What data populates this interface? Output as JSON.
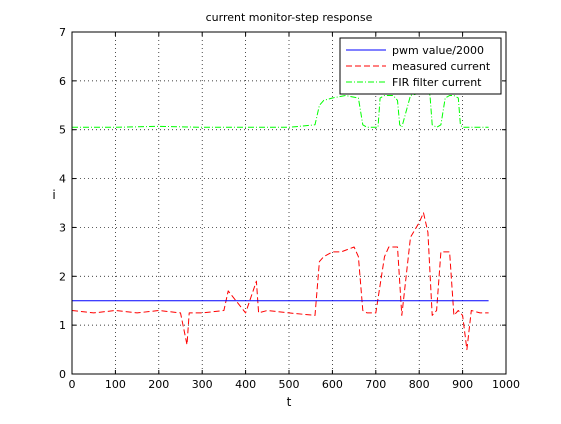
{
  "chart_data": {
    "type": "line",
    "title": "current monitor-step response",
    "xlabel": "t",
    "ylabel": "i",
    "xlim": [
      0,
      1000
    ],
    "ylim": [
      0,
      7
    ],
    "xticks": [
      0,
      100,
      200,
      300,
      400,
      500,
      600,
      700,
      800,
      900,
      1000
    ],
    "yticks": [
      0,
      1,
      2,
      3,
      4,
      5,
      6,
      7
    ],
    "grid": true,
    "legend_position": "top-right",
    "series": [
      {
        "name": "pwm value/2000",
        "color": "#0000ff",
        "style": "solid",
        "x": [
          0,
          960
        ],
        "y": [
          1.5,
          1.5
        ]
      },
      {
        "name": "measured current",
        "color": "#ff0000",
        "style": "dashed",
        "x": [
          0,
          50,
          100,
          150,
          200,
          250,
          265,
          270,
          300,
          350,
          360,
          400,
          425,
          430,
          450,
          500,
          560,
          570,
          580,
          600,
          620,
          650,
          660,
          670,
          680,
          700,
          720,
          730,
          740,
          750,
          760,
          780,
          800,
          810,
          820,
          830,
          840,
          850,
          870,
          880,
          890,
          900,
          910,
          920,
          940,
          960
        ],
        "y": [
          1.3,
          1.25,
          1.3,
          1.25,
          1.3,
          1.25,
          0.6,
          1.25,
          1.25,
          1.3,
          1.7,
          1.25,
          1.9,
          1.25,
          1.3,
          1.25,
          1.2,
          2.3,
          2.4,
          2.5,
          2.5,
          2.6,
          2.4,
          1.3,
          1.25,
          1.25,
          2.4,
          2.6,
          2.6,
          2.6,
          1.2,
          2.8,
          3.1,
          3.3,
          2.9,
          1.2,
          1.3,
          2.5,
          2.5,
          1.2,
          1.3,
          1.2,
          0.5,
          1.3,
          1.25,
          1.25
        ]
      },
      {
        "name": "FIR filter current",
        "color": "#00ff00",
        "style": "dashdot",
        "x": [
          0,
          100,
          200,
          300,
          400,
          500,
          560,
          570,
          580,
          600,
          630,
          660,
          670,
          680,
          700,
          705,
          710,
          720,
          740,
          750,
          755,
          760,
          780,
          800,
          820,
          825,
          830,
          840,
          850,
          860,
          870,
          880,
          890,
          895,
          900,
          960
        ],
        "y": [
          5.05,
          5.05,
          5.07,
          5.05,
          5.05,
          5.05,
          5.1,
          5.5,
          5.6,
          5.65,
          5.7,
          5.65,
          5.1,
          5.05,
          5.05,
          5.05,
          5.65,
          5.7,
          5.7,
          5.6,
          5.1,
          5.05,
          5.7,
          5.75,
          5.8,
          5.7,
          5.1,
          5.05,
          5.1,
          5.65,
          5.7,
          5.7,
          5.65,
          5.1,
          5.05,
          5.05
        ]
      }
    ]
  }
}
